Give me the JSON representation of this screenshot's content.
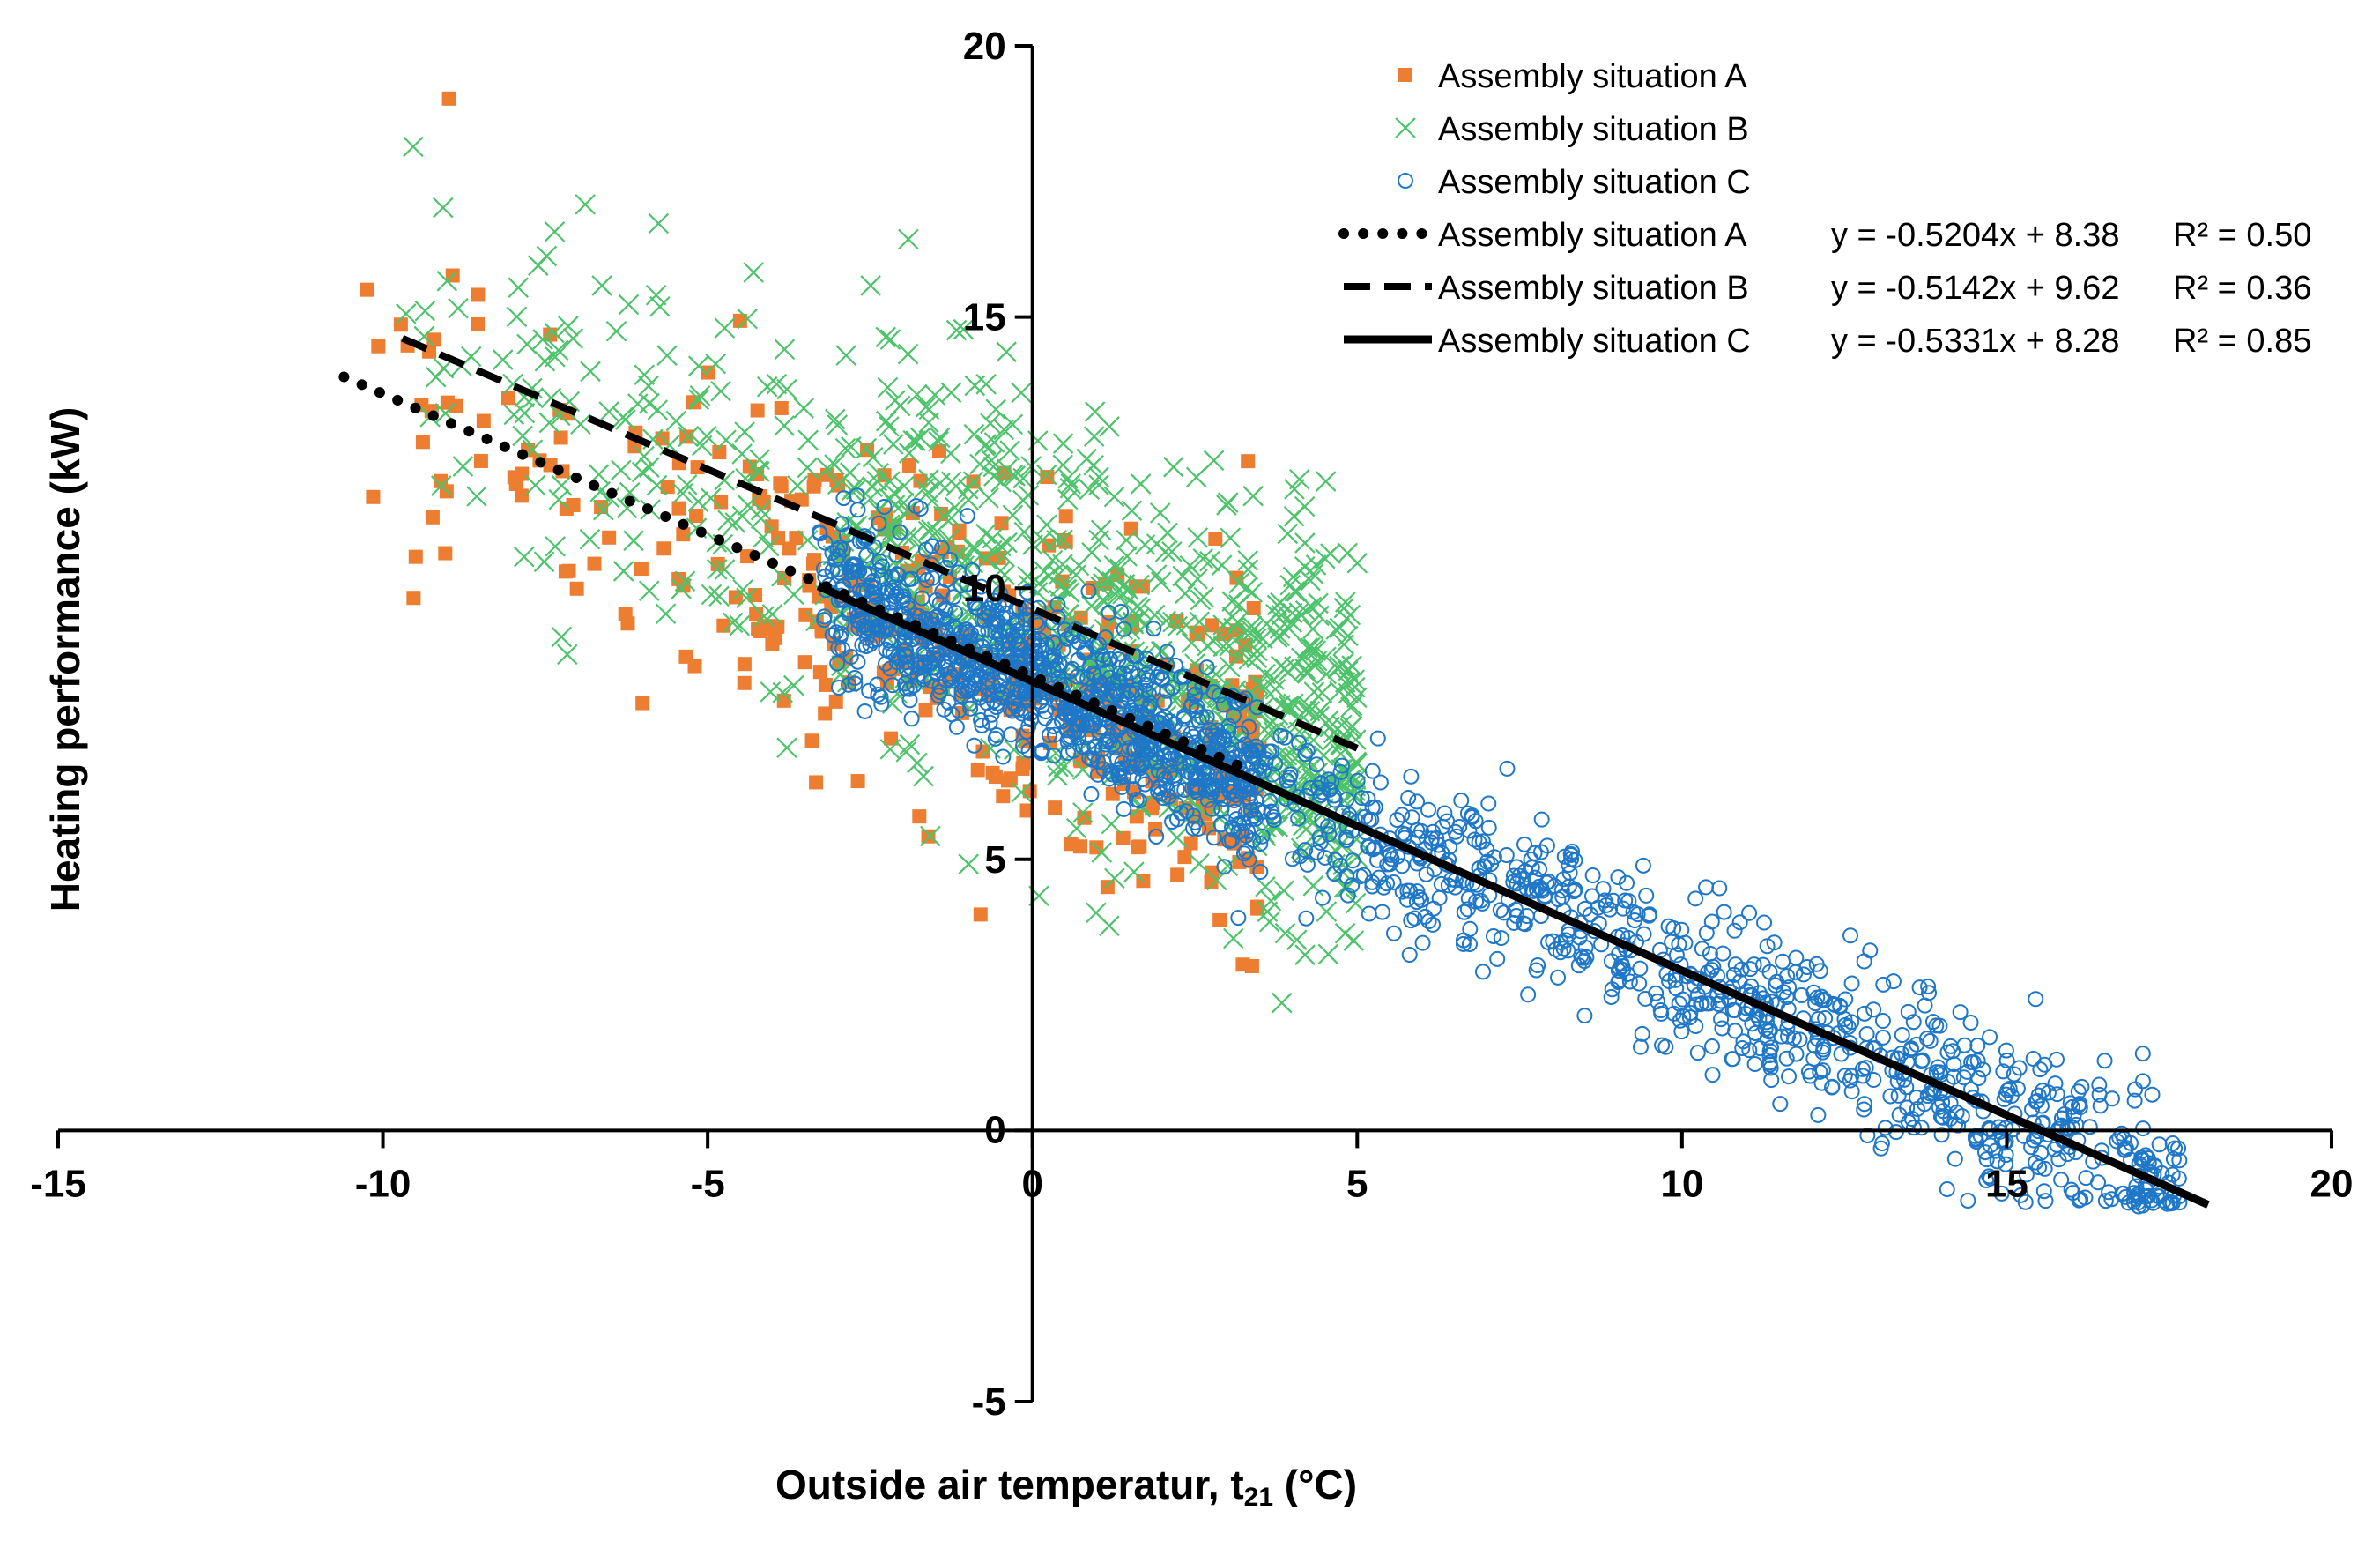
{
  "chart_data": {
    "type": "scatter",
    "xlabel": "Outside air temperatur, t",
    "xlabel_sub": "21",
    "xlabel_unit": " (°C)",
    "ylabel": "Heating performance (kW)",
    "xlim": [
      -15,
      20
    ],
    "ylim": [
      -5,
      20
    ],
    "x_ticks": [
      -15,
      -10,
      -5,
      0,
      5,
      10,
      15,
      20
    ],
    "y_ticks": [
      20,
      15,
      10,
      5,
      0,
      -5
    ],
    "legend_position": "top-right",
    "series": [
      {
        "name": "Assembly situation A",
        "marker": "square",
        "color": "#ED7D31",
        "x_range": [
          -10.6,
          3.5
        ],
        "slope": -0.5204,
        "intercept": 8.38,
        "noise": 1.6,
        "count": 420,
        "seed": 11
      },
      {
        "name": "Assembly situation B",
        "marker": "x",
        "color": "#4DC36B",
        "x_range": [
          -9.7,
          5.0
        ],
        "slope": -0.5142,
        "intercept": 9.62,
        "noise": 1.8,
        "count": 900,
        "seed": 23
      },
      {
        "name": "Assembly situation C",
        "marker": "circle",
        "color": "#1F77C8",
        "x_range": [
          -3.3,
          17.7
        ],
        "slope": -0.5331,
        "intercept": 8.28,
        "noise": 0.75,
        "count": 1900,
        "seed": 37
      }
    ],
    "trendlines": [
      {
        "name": "Assembly situation A",
        "equation": "y = -0.5204x + 8.38",
        "r2": "R² = 0.50",
        "slope": -0.5204,
        "intercept": 8.38,
        "x_range": [
          -10.6,
          3.4
        ],
        "style": "dotted"
      },
      {
        "name": "Assembly situation B",
        "equation": "y = -0.5142x + 9.62",
        "r2": "R² = 0.36",
        "slope": -0.5142,
        "intercept": 9.62,
        "x_range": [
          -9.7,
          5.0
        ],
        "style": "dashed"
      },
      {
        "name": "Assembly situation C",
        "equation": "y = -0.5331x + 8.28",
        "r2": "R² = 0.85",
        "slope": -0.5331,
        "intercept": 8.28,
        "x_range": [
          -3.3,
          18.1
        ],
        "style": "solid"
      }
    ]
  }
}
